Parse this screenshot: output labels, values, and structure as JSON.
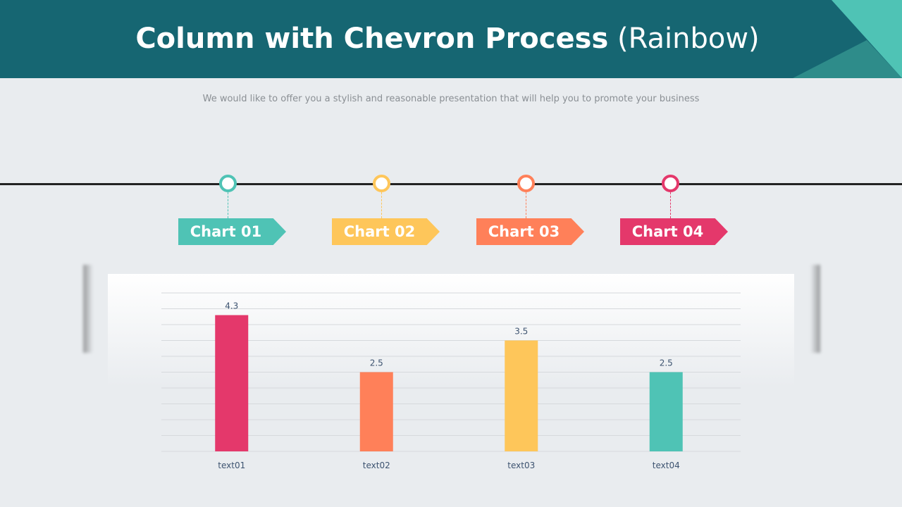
{
  "header": {
    "title_bold": "Column with Chevron Process",
    "title_light": "(Rainbow)"
  },
  "subtitle": "We would like to offer you a stylish and reasonable presentation that will help you to promote your business",
  "colors": {
    "header": "#166672",
    "accent_light": "#4fc3b5",
    "accent_mid": "#2e8c8a",
    "teal": "#4fc3b5",
    "yellow": "#fec65a",
    "orange": "#ff8059",
    "pink": "#e4386b"
  },
  "process": [
    {
      "label": "Chart 01",
      "color": "#4fc3b5"
    },
    {
      "label": "Chart 02",
      "color": "#fec65a"
    },
    {
      "label": "Chart 03",
      "color": "#ff8059"
    },
    {
      "label": "Chart 04",
      "color": "#e4386b"
    }
  ],
  "chart_data": {
    "type": "bar",
    "categories": [
      "text01",
      "text02",
      "text03",
      "text04"
    ],
    "values": [
      4.3,
      2.5,
      3.5,
      2.5
    ],
    "colors": [
      "#e4386b",
      "#ff8059",
      "#fec65a",
      "#4fc3b5"
    ],
    "data_labels": [
      "4.3",
      "2.5",
      "3.5",
      "2.5"
    ],
    "ylim": [
      0,
      5
    ],
    "grid_step": 0.5,
    "grid": true,
    "y_tick_labels_shown": false
  }
}
